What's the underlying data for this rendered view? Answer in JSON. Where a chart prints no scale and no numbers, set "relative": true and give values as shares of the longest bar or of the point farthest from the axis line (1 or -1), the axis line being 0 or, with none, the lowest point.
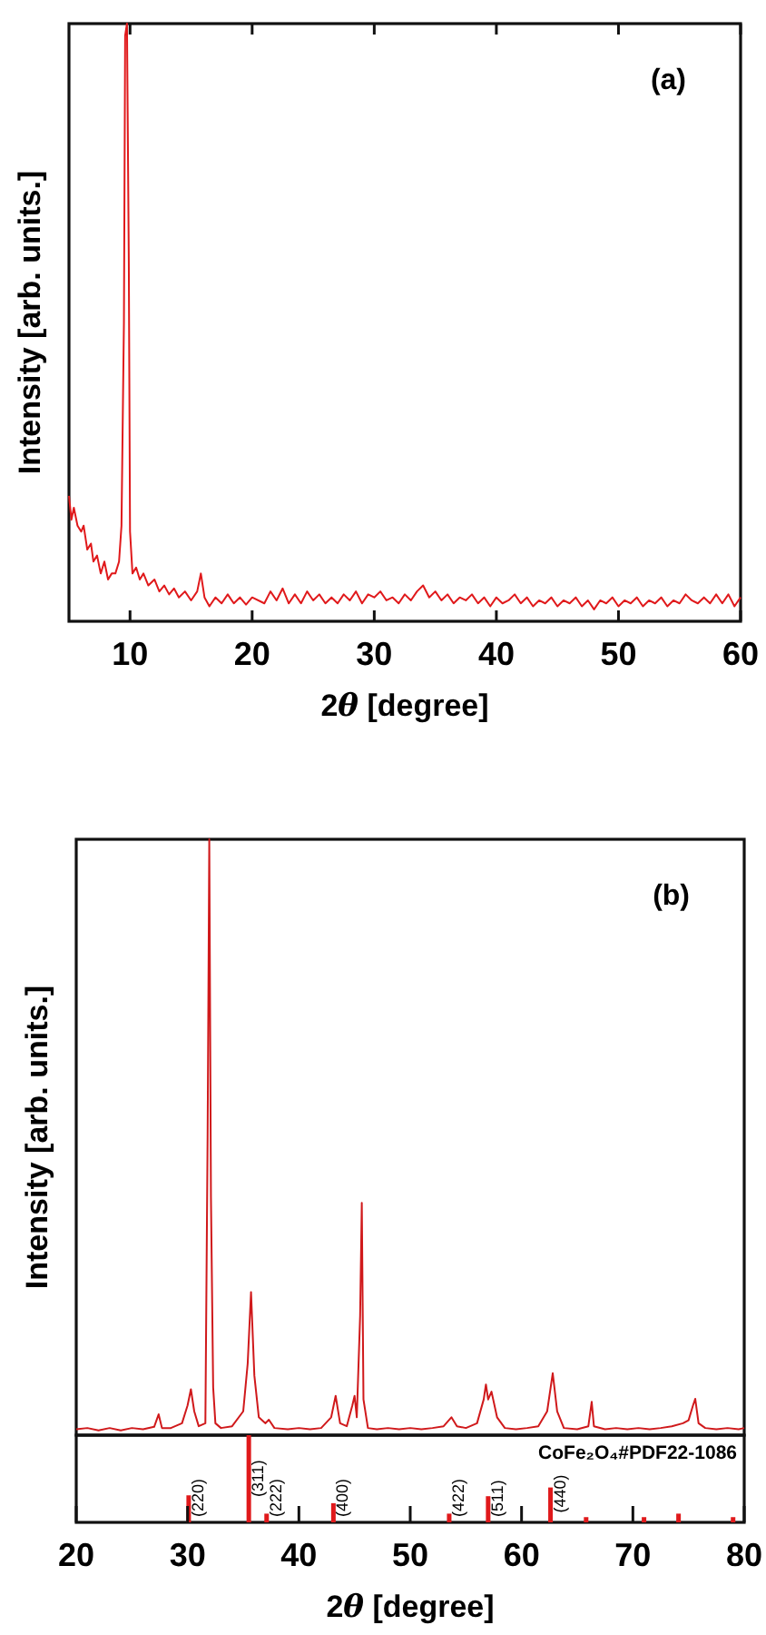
{
  "chart_data": [
    {
      "type": "line",
      "relative": true,
      "xlim": [
        5,
        60
      ],
      "xticks": [
        10,
        20,
        30,
        40,
        50,
        60
      ],
      "tick_labels": "x",
      "xlabel": "2θ [degree]",
      "ylabel": "Intensity [arb. units.]",
      "annotations": [
        "(a)"
      ],
      "series": [
        {
          "color": "#e0191b",
          "x": [
            5.0,
            5.2,
            5.4,
            5.7,
            6.0,
            6.2,
            6.5,
            6.8,
            7.0,
            7.3,
            7.6,
            7.9,
            8.2,
            8.5,
            8.8,
            9.1,
            9.3,
            9.5,
            9.6,
            9.75,
            9.9,
            10.0,
            10.2,
            10.5,
            10.8,
            11.1,
            11.5,
            12.0,
            12.4,
            12.8,
            13.2,
            13.6,
            14.0,
            14.5,
            15.0,
            15.5,
            15.8,
            16.1,
            16.5,
            17,
            17.5,
            18,
            18.5,
            19,
            19.5,
            20,
            21,
            21.5,
            22,
            22.5,
            23,
            23.5,
            24,
            24.5,
            25,
            25.5,
            26,
            26.5,
            27,
            27.5,
            28,
            28.5,
            29,
            29.5,
            30,
            30.5,
            31,
            31.5,
            32,
            32.5,
            33,
            33.5,
            34,
            34.5,
            35,
            35.5,
            36,
            36.5,
            37,
            37.5,
            38,
            38.5,
            39,
            39.5,
            40,
            40.5,
            41,
            41.5,
            42,
            42.5,
            43,
            43.5,
            44,
            44.5,
            45,
            45.5,
            46,
            46.5,
            47,
            47.5,
            48,
            48.5,
            49,
            49.5,
            50,
            50.5,
            51,
            51.5,
            52,
            52.5,
            53,
            53.5,
            54,
            54.5,
            55,
            55.5,
            56,
            56.5,
            57,
            57.5,
            58,
            58.5,
            59,
            59.5,
            60
          ],
          "values": [
            0.21,
            0.17,
            0.19,
            0.16,
            0.15,
            0.16,
            0.12,
            0.13,
            0.1,
            0.11,
            0.08,
            0.1,
            0.07,
            0.08,
            0.08,
            0.1,
            0.16,
            0.5,
            0.98,
            1.0,
            0.6,
            0.15,
            0.08,
            0.09,
            0.07,
            0.08,
            0.06,
            0.07,
            0.05,
            0.06,
            0.045,
            0.055,
            0.04,
            0.05,
            0.035,
            0.05,
            0.08,
            0.04,
            0.025,
            0.04,
            0.03,
            0.045,
            0.03,
            0.04,
            0.028,
            0.04,
            0.03,
            0.05,
            0.035,
            0.055,
            0.03,
            0.045,
            0.03,
            0.05,
            0.035,
            0.045,
            0.03,
            0.04,
            0.03,
            0.045,
            0.035,
            0.05,
            0.03,
            0.045,
            0.04,
            0.05,
            0.035,
            0.04,
            0.03,
            0.045,
            0.035,
            0.05,
            0.06,
            0.04,
            0.05,
            0.035,
            0.045,
            0.03,
            0.04,
            0.035,
            0.045,
            0.03,
            0.04,
            0.025,
            0.04,
            0.03,
            0.035,
            0.045,
            0.03,
            0.04,
            0.025,
            0.035,
            0.03,
            0.04,
            0.025,
            0.035,
            0.03,
            0.04,
            0.025,
            0.035,
            0.02,
            0.035,
            0.03,
            0.04,
            0.025,
            0.035,
            0.03,
            0.04,
            0.025,
            0.035,
            0.03,
            0.04,
            0.025,
            0.035,
            0.03,
            0.045,
            0.035,
            0.03,
            0.04,
            0.03,
            0.045,
            0.03,
            0.045,
            0.025,
            0.04
          ]
        }
      ]
    },
    {
      "type": "line",
      "relative": true,
      "xlim": [
        20,
        80
      ],
      "tick_labels": false,
      "ylabel": "Intensity [arb. units.]",
      "annotations": [
        "(b)"
      ],
      "series": [
        {
          "color": "#d0191b",
          "x": [
            20,
            21,
            22,
            23,
            24,
            25,
            26,
            27,
            27.4,
            27.7,
            28.5,
            29.5,
            30.0,
            30.3,
            30.6,
            31.0,
            31.6,
            31.8,
            31.95,
            32.1,
            32.3,
            32.5,
            33,
            34,
            35,
            35.4,
            35.7,
            36.0,
            36.4,
            37.0,
            37.3,
            37.8,
            39,
            40,
            41,
            42,
            42.9,
            43.3,
            43.7,
            44.3,
            44.8,
            45.0,
            45.2,
            45.5,
            45.65,
            45.8,
            46.2,
            47,
            48,
            49,
            50,
            51,
            52,
            53,
            53.7,
            54.2,
            55,
            56,
            56.6,
            56.8,
            57.0,
            57.3,
            57.8,
            58.5,
            59.5,
            60.5,
            61.5,
            62.3,
            62.8,
            63.2,
            63.8,
            65,
            66.0,
            66.3,
            66.5,
            67.5,
            68.5,
            69.5,
            70.5,
            71.5,
            72.5,
            73.5,
            74.5,
            75.0,
            75.4,
            75.6,
            75.9,
            76.5,
            77.5,
            78.5,
            79.5,
            80
          ],
          "values": [
            0.01,
            0.012,
            0.008,
            0.012,
            0.008,
            0.012,
            0.01,
            0.014,
            0.035,
            0.012,
            0.012,
            0.02,
            0.05,
            0.077,
            0.04,
            0.015,
            0.02,
            0.5,
            1.0,
            0.4,
            0.08,
            0.02,
            0.012,
            0.015,
            0.04,
            0.12,
            0.24,
            0.1,
            0.03,
            0.02,
            0.026,
            0.012,
            0.01,
            0.012,
            0.01,
            0.012,
            0.03,
            0.066,
            0.02,
            0.015,
            0.05,
            0.066,
            0.03,
            0.2,
            0.39,
            0.06,
            0.012,
            0.01,
            0.012,
            0.01,
            0.012,
            0.01,
            0.012,
            0.015,
            0.03,
            0.015,
            0.012,
            0.02,
            0.06,
            0.085,
            0.06,
            0.073,
            0.03,
            0.012,
            0.01,
            0.012,
            0.015,
            0.04,
            0.104,
            0.04,
            0.012,
            0.01,
            0.015,
            0.056,
            0.015,
            0.01,
            0.012,
            0.01,
            0.012,
            0.01,
            0.012,
            0.015,
            0.02,
            0.025,
            0.05,
            0.061,
            0.02,
            0.012,
            0.01,
            0.012,
            0.01,
            0.012
          ]
        }
      ]
    },
    {
      "type": "bar",
      "relative": true,
      "xlim": [
        20,
        80
      ],
      "xticks": [
        20,
        30,
        40,
        50,
        60,
        70,
        80
      ],
      "tick_labels": "x",
      "xlabel": "2θ [degree]",
      "x": [
        30.1,
        35.5,
        37.1,
        43.1,
        53.5,
        57.0,
        62.6,
        65.8,
        71.0,
        74.1,
        79.0
      ],
      "values": [
        0.31,
        1.0,
        0.1,
        0.22,
        0.1,
        0.3,
        0.4,
        0.06,
        0.06,
        0.1,
        0.06
      ],
      "color": "#e0191b",
      "annotations": [
        "CoFe₂O₄#PDF22-1086",
        {
          "text": "(220)",
          "x": 30.1,
          "y": 0.31
        },
        {
          "text": "(311)",
          "x": 35.5,
          "y": 1.0
        },
        {
          "text": "(222)",
          "x": 37.1,
          "y": 0.1
        },
        {
          "text": "(400)",
          "x": 43.1,
          "y": 0.22
        },
        {
          "text": "(422)",
          "x": 53.5,
          "y": 0.1
        },
        {
          "text": "(511)",
          "x": 57.0,
          "y": 0.3
        },
        {
          "text": "(440)",
          "x": 62.6,
          "y": 0.4
        }
      ]
    }
  ]
}
